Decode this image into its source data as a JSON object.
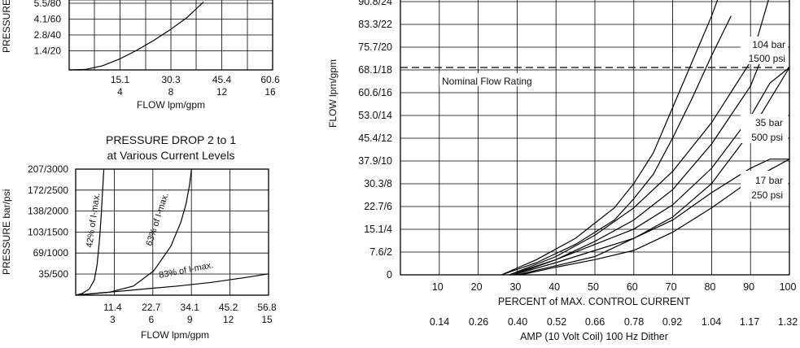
{
  "colors": {
    "ink": "#000000",
    "background": "#ffffff"
  },
  "chart_data": [
    {
      "type": "line",
      "title": "",
      "ylabel": "PRESSURE",
      "xlabel": "FLOW lpm/gpm",
      "y_ticks": [
        "5.5/80",
        "4.1/60",
        "2.8/40",
        "1.4/20"
      ],
      "x_ticks": [
        {
          "lpm": "15.1",
          "gpm": "4"
        },
        {
          "lpm": "30.3",
          "gpm": "8"
        },
        {
          "lpm": "45.4",
          "gpm": "12"
        },
        {
          "lpm": "60.6",
          "gpm": "16"
        }
      ],
      "xlim": [
        0,
        60.6
      ],
      "grid": true,
      "series": [
        {
          "x": [
            0,
            5,
            10,
            15,
            20,
            25,
            30,
            35,
            40
          ],
          "y": [
            0,
            0.05,
            0.35,
            0.9,
            1.6,
            2.4,
            3.3,
            4.3,
            5.6
          ]
        }
      ]
    },
    {
      "type": "line",
      "title": "PRESSURE DROP 2 to 1",
      "subtitle": "at Various Current Levels",
      "ylabel": "PRESSURE bar/psi",
      "xlabel": "FLOW lpm/gpm",
      "y_ticks": [
        "207/3000",
        "172/2500",
        "138/2000",
        "103/1500",
        "69/1000",
        "35/500"
      ],
      "x_ticks": [
        {
          "lpm": "11.4",
          "gpm": "3"
        },
        {
          "lpm": "22.7",
          "gpm": "6"
        },
        {
          "lpm": "34.1",
          "gpm": "9"
        },
        {
          "lpm": "45.2",
          "gpm": "12"
        },
        {
          "lpm": "56.8",
          "gpm": "15"
        }
      ],
      "xlim": [
        0,
        56.8
      ],
      "ylim": [
        0,
        207
      ],
      "grid": true,
      "series": [
        {
          "name": "42% of I-max.",
          "x": [
            0,
            2,
            4,
            5.5,
            6.3,
            7,
            7.5,
            7.9,
            8.3
          ],
          "y": [
            0,
            3,
            10,
            25,
            50,
            90,
            130,
            170,
            207
          ]
        },
        {
          "name": "63% of I-max.",
          "x": [
            0,
            10,
            17,
            23,
            28,
            31,
            32.5,
            33.5,
            34.1
          ],
          "y": [
            0,
            5,
            15,
            40,
            80,
            120,
            150,
            180,
            207
          ]
        },
        {
          "name": "83% of I-max.",
          "x": [
            0,
            10,
            20,
            30,
            40,
            50,
            56.8
          ],
          "y": [
            0,
            5,
            10,
            15,
            21,
            29,
            35
          ]
        }
      ]
    },
    {
      "type": "line",
      "title": "",
      "ylabel": "FLOW lpm/gpm",
      "xlabel": "PERCENT of MAX. CONTROL CURRENT",
      "x2label": "AMP (10 Volt Coil) 100 Hz Dither",
      "y_ticks": [
        "90.8/24",
        "83.3/22",
        "75.7/20",
        "68.1/18",
        "60.6/16",
        "53.0/14",
        "45.4/12",
        "37.9/10",
        "30.3/8",
        "22.7/6",
        "15.1/4",
        "7.6/2",
        "0"
      ],
      "x_ticks": [
        "10",
        "20",
        "30",
        "40",
        "50",
        "60",
        "70",
        "80",
        "90",
        "100"
      ],
      "x2_ticks": [
        "0.14",
        "0.26",
        "0.40",
        "0.52",
        "0.66",
        "0.78",
        "0.92",
        "1.04",
        "1.17",
        "1.32"
      ],
      "xlim": [
        0,
        100
      ],
      "ylim": [
        0,
        90.8
      ],
      "grid": true,
      "nominal_flow_rating": {
        "label": "Nominal Flow Rating",
        "y": 68.1
      },
      "annotations": [
        {
          "bar": "104 bar",
          "psi": "1500 psi"
        },
        {
          "bar": "35 bar",
          "psi": "500 psi"
        },
        {
          "bar": "17 bar",
          "psi": "250 psi"
        }
      ],
      "series": [
        {
          "group": "104 bar",
          "x": [
            26,
            35,
            45,
            55,
            60,
            65,
            70,
            75,
            80,
            82
          ],
          "y": [
            0,
            5,
            12,
            22,
            30,
            40,
            55,
            70,
            85,
            92
          ]
        },
        {
          "group": "104 bar",
          "x": [
            26,
            35,
            45,
            55,
            60,
            65,
            70,
            75,
            80,
            85
          ],
          "y": [
            0,
            4,
            10,
            18,
            25,
            33,
            45,
            58,
            72,
            85
          ]
        },
        {
          "group": "104 bar",
          "x": [
            28,
            40,
            50,
            60,
            70,
            80,
            90,
            95
          ],
          "y": [
            0,
            6,
            13,
            22,
            34,
            50,
            70,
            92
          ]
        },
        {
          "group": "104 bar",
          "x": [
            28,
            40,
            50,
            60,
            70,
            80,
            90,
            95
          ],
          "y": [
            0,
            5,
            11,
            18,
            28,
            43,
            62,
            78
          ]
        },
        {
          "group": "35 bar",
          "x": [
            29,
            40,
            50,
            60,
            70,
            80,
            90,
            95,
            100
          ],
          "y": [
            0,
            5,
            10,
            15,
            23,
            35,
            52,
            63,
            68.1
          ]
        },
        {
          "group": "35 bar",
          "x": [
            29,
            40,
            50,
            60,
            70,
            80,
            90,
            100
          ],
          "y": [
            0,
            4,
            8,
            12,
            19,
            30,
            47,
            68.1
          ]
        },
        {
          "group": "17 bar",
          "x": [
            30,
            40,
            50,
            55,
            60,
            70,
            80,
            90,
            95,
            100
          ],
          "y": [
            0,
            3,
            6,
            9,
            12,
            18,
            27,
            35,
            38,
            38
          ]
        },
        {
          "group": "17 bar",
          "x": [
            31,
            40,
            50,
            60,
            70,
            80,
            90,
            100
          ],
          "y": [
            0,
            2.5,
            5,
            8,
            14,
            22,
            31,
            38
          ]
        }
      ]
    }
  ]
}
